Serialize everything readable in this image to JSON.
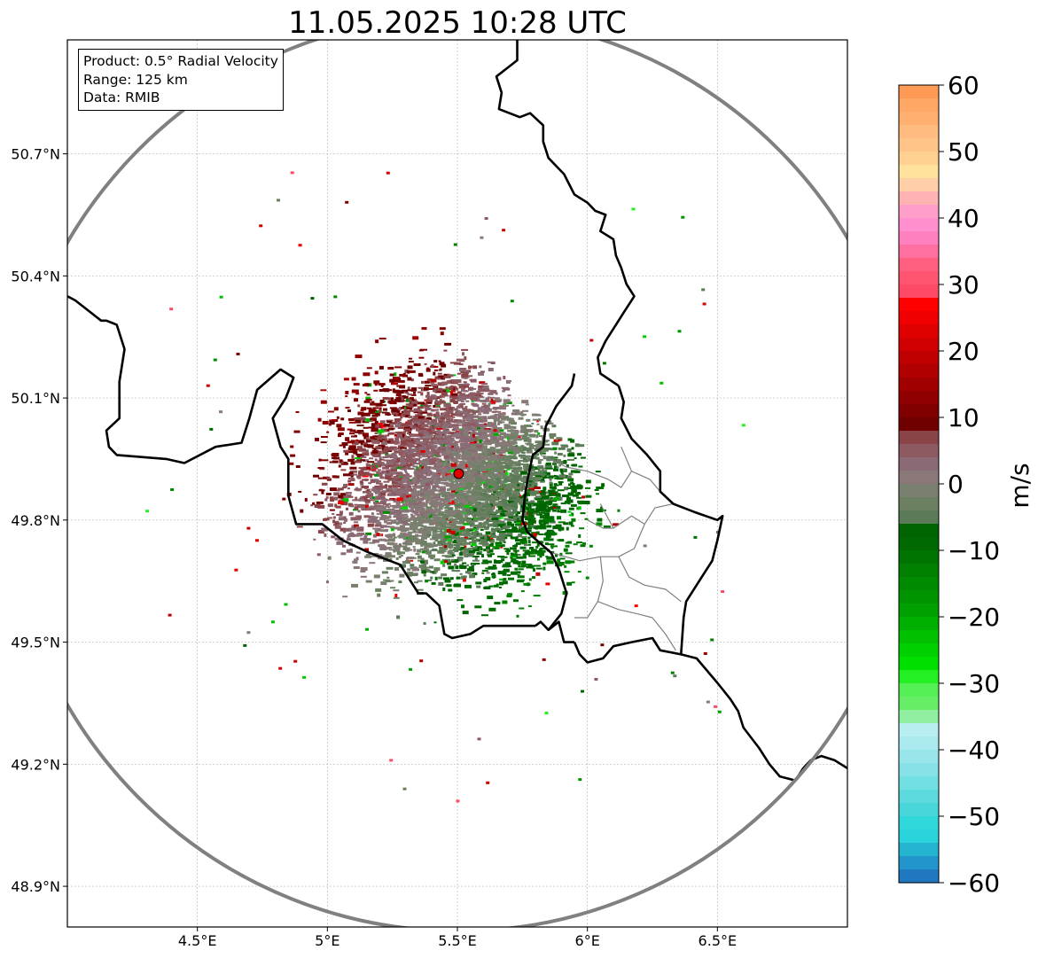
{
  "title": "11.05.2025 10:28 UTC",
  "info": {
    "product": "Product: 0.5° Radial Velocity",
    "range": "Range: 125 km",
    "data": "Data: RMIB"
  },
  "map": {
    "lon_range": [
      4.0,
      7.0
    ],
    "lat_range": [
      48.8,
      50.98
    ],
    "x_ticks": [
      {
        "value": 4.5,
        "label": "4.5°E"
      },
      {
        "value": 5.0,
        "label": "5°E"
      },
      {
        "value": 5.5,
        "label": "5.5°E"
      },
      {
        "value": 6.0,
        "label": "6°E"
      },
      {
        "value": 6.5,
        "label": "6.5°E"
      }
    ],
    "y_ticks": [
      {
        "value": 48.9,
        "label": "48.9°N"
      },
      {
        "value": 49.2,
        "label": "49.2°N"
      },
      {
        "value": 49.5,
        "label": "49.5°N"
      },
      {
        "value": 49.8,
        "label": "49.8°N"
      },
      {
        "value": 50.1,
        "label": "50.1°N"
      },
      {
        "value": 50.4,
        "label": "50.4°N"
      },
      {
        "value": 50.7,
        "label": "50.7°N"
      }
    ],
    "grid": true,
    "radar_site": {
      "lon": 5.505,
      "lat": 49.914
    },
    "range_ring_km": 125,
    "colors": {
      "range_ring": "#808080",
      "border": "#000000",
      "admin_border": "#808080",
      "site_marker": "#e00000"
    }
  },
  "colorbar": {
    "label": "m/s",
    "min": -60,
    "max": 60,
    "ticks": [
      {
        "value": 60,
        "label": "60"
      },
      {
        "value": 50,
        "label": "50"
      },
      {
        "value": 40,
        "label": "40"
      },
      {
        "value": 30,
        "label": "30"
      },
      {
        "value": 20,
        "label": "20"
      },
      {
        "value": 10,
        "label": "10"
      },
      {
        "value": 0,
        "label": "0"
      },
      {
        "value": -10,
        "label": "−10"
      },
      {
        "value": -20,
        "label": "−20"
      },
      {
        "value": -30,
        "label": "−30"
      },
      {
        "value": -40,
        "label": "−40"
      },
      {
        "value": -50,
        "label": "−50"
      },
      {
        "value": -60,
        "label": "−60"
      }
    ],
    "bands": [
      {
        "from": 58,
        "to": 60,
        "color": "#ff9a55"
      },
      {
        "from": 56,
        "to": 58,
        "color": "#ffa866"
      },
      {
        "from": 54,
        "to": 56,
        "color": "#ffb070"
      },
      {
        "from": 52,
        "to": 54,
        "color": "#ffbb80"
      },
      {
        "from": 50,
        "to": 52,
        "color": "#ffc488"
      },
      {
        "from": 48,
        "to": 50,
        "color": "#ffd090"
      },
      {
        "from": 46,
        "to": 48,
        "color": "#ffe29c"
      },
      {
        "from": 44,
        "to": 46,
        "color": "#ffd0a8"
      },
      {
        "from": 42,
        "to": 44,
        "color": "#ffb3b3"
      },
      {
        "from": 40,
        "to": 42,
        "color": "#ff9ec8"
      },
      {
        "from": 38,
        "to": 40,
        "color": "#ff8fcf"
      },
      {
        "from": 36,
        "to": 38,
        "color": "#ff80bf"
      },
      {
        "from": 34,
        "to": 36,
        "color": "#ff70a0"
      },
      {
        "from": 32,
        "to": 34,
        "color": "#ff6080"
      },
      {
        "from": 30,
        "to": 32,
        "color": "#ff5570"
      },
      {
        "from": 28,
        "to": 30,
        "color": "#ff4a66"
      },
      {
        "from": 26,
        "to": 28,
        "color": "#ff0000"
      },
      {
        "from": 24,
        "to": 26,
        "color": "#f00000"
      },
      {
        "from": 22,
        "to": 24,
        "color": "#e00000"
      },
      {
        "from": 20,
        "to": 22,
        "color": "#d00000"
      },
      {
        "from": 18,
        "to": 20,
        "color": "#c00000"
      },
      {
        "from": 16,
        "to": 18,
        "color": "#b00000"
      },
      {
        "from": 14,
        "to": 16,
        "color": "#a00000"
      },
      {
        "from": 12,
        "to": 14,
        "color": "#900000"
      },
      {
        "from": 10,
        "to": 12,
        "color": "#800000"
      },
      {
        "from": 8,
        "to": 10,
        "color": "#700000"
      },
      {
        "from": 6,
        "to": 8,
        "color": "#8a4448"
      },
      {
        "from": 4,
        "to": 6,
        "color": "#8e5a62"
      },
      {
        "from": 2,
        "to": 4,
        "color": "#8a6a74"
      },
      {
        "from": 0,
        "to": 2,
        "color": "#8a7878"
      },
      {
        "from": -2,
        "to": 0,
        "color": "#7a8070"
      },
      {
        "from": -4,
        "to": -2,
        "color": "#6a8060"
      },
      {
        "from": -6,
        "to": -4,
        "color": "#5a7a58"
      },
      {
        "from": -8,
        "to": -6,
        "color": "#006400"
      },
      {
        "from": -10,
        "to": -8,
        "color": "#006a00"
      },
      {
        "from": -12,
        "to": -10,
        "color": "#007400"
      },
      {
        "from": -14,
        "to": -12,
        "color": "#007f00"
      },
      {
        "from": -16,
        "to": -14,
        "color": "#008a00"
      },
      {
        "from": -18,
        "to": -16,
        "color": "#009500"
      },
      {
        "from": -20,
        "to": -18,
        "color": "#00a000"
      },
      {
        "from": -22,
        "to": -20,
        "color": "#00b000"
      },
      {
        "from": -24,
        "to": -22,
        "color": "#00c000"
      },
      {
        "from": -26,
        "to": -24,
        "color": "#00d000"
      },
      {
        "from": -28,
        "to": -26,
        "color": "#00e000"
      },
      {
        "from": -30,
        "to": -28,
        "color": "#22f022"
      },
      {
        "from": -32,
        "to": -30,
        "color": "#55f055"
      },
      {
        "from": -34,
        "to": -32,
        "color": "#66ee66"
      },
      {
        "from": -36,
        "to": -34,
        "color": "#90f0a0"
      },
      {
        "from": -38,
        "to": -36,
        "color": "#b8eef0"
      },
      {
        "from": -40,
        "to": -38,
        "color": "#aaeaee"
      },
      {
        "from": -42,
        "to": -40,
        "color": "#98e6ea"
      },
      {
        "from": -44,
        "to": -42,
        "color": "#86e2e6"
      },
      {
        "from": -46,
        "to": -44,
        "color": "#72dfe2"
      },
      {
        "from": -48,
        "to": -46,
        "color": "#5ddadd"
      },
      {
        "from": -50,
        "to": -48,
        "color": "#48d6da"
      },
      {
        "from": -52,
        "to": -50,
        "color": "#30d8dc"
      },
      {
        "from": -54,
        "to": -52,
        "color": "#2ad4dc"
      },
      {
        "from": -56,
        "to": -54,
        "color": "#24b4d0"
      },
      {
        "from": -58,
        "to": -56,
        "color": "#2296cc"
      },
      {
        "from": -60,
        "to": -58,
        "color": "#1f78c0"
      }
    ]
  },
  "boundaries": [
    {
      "name": "lux-north",
      "points": [
        [
          5.73,
          50.98
        ],
        [
          5.73,
          50.93
        ],
        [
          5.65,
          50.89
        ],
        [
          5.67,
          50.85
        ],
        [
          5.66,
          50.81
        ],
        [
          5.74,
          50.79
        ],
        [
          5.78,
          50.8
        ],
        [
          5.83,
          50.77
        ],
        [
          5.83,
          50.73
        ],
        [
          5.85,
          50.69
        ],
        [
          5.91,
          50.65
        ],
        [
          5.95,
          50.6
        ],
        [
          6.0,
          50.58
        ],
        [
          6.03,
          50.56
        ],
        [
          6.07,
          50.55
        ],
        [
          6.05,
          50.51
        ],
        [
          6.1,
          50.49
        ],
        [
          6.11,
          50.45
        ],
        [
          6.13,
          50.42
        ],
        [
          6.15,
          50.38
        ],
        [
          6.18,
          50.35
        ],
        [
          6.14,
          50.31
        ],
        [
          6.11,
          50.28
        ],
        [
          6.07,
          50.24
        ],
        [
          6.04,
          50.2
        ],
        [
          6.05,
          50.16
        ],
        [
          6.12,
          50.13
        ]
      ]
    },
    {
      "name": "lux-east",
      "points": [
        [
          6.12,
          50.13
        ],
        [
          6.14,
          50.09
        ],
        [
          6.13,
          50.05
        ],
        [
          6.17,
          50.0
        ],
        [
          6.23,
          49.96
        ],
        [
          6.28,
          49.92
        ],
        [
          6.28,
          49.87
        ],
        [
          6.33,
          49.84
        ],
        [
          6.41,
          49.82
        ],
        [
          6.5,
          49.8
        ],
        [
          6.52,
          49.81
        ],
        [
          6.5,
          49.75
        ],
        [
          6.48,
          49.7
        ],
        [
          6.44,
          49.66
        ],
        [
          6.38,
          49.6
        ],
        [
          6.37,
          49.56
        ],
        [
          6.36,
          49.47
        ],
        [
          6.28,
          49.48
        ],
        [
          6.25,
          49.51
        ],
        [
          6.17,
          49.5
        ],
        [
          6.1,
          49.49
        ],
        [
          6.06,
          49.46
        ],
        [
          6.0,
          49.45
        ],
        [
          5.97,
          49.47
        ],
        [
          5.95,
          49.5
        ]
      ]
    },
    {
      "name": "germany-france",
      "points": [
        [
          6.36,
          49.47
        ],
        [
          6.42,
          49.46
        ],
        [
          6.5,
          49.4
        ],
        [
          6.55,
          49.36
        ],
        [
          6.58,
          49.33
        ],
        [
          6.6,
          49.29
        ],
        [
          6.66,
          49.24
        ],
        [
          6.7,
          49.2
        ],
        [
          6.74,
          49.17
        ],
        [
          6.8,
          49.16
        ],
        [
          6.83,
          49.19
        ],
        [
          6.86,
          49.21
        ],
        [
          6.9,
          49.22
        ],
        [
          6.95,
          49.21
        ],
        [
          7.0,
          49.19
        ]
      ]
    },
    {
      "name": "belgium-luxembourg",
      "points": [
        [
          5.95,
          50.16
        ],
        [
          5.94,
          50.13
        ],
        [
          5.88,
          50.08
        ],
        [
          5.84,
          50.03
        ],
        [
          5.83,
          49.98
        ],
        [
          5.79,
          49.96
        ],
        [
          5.77,
          49.9
        ],
        [
          5.76,
          49.86
        ],
        [
          5.75,
          49.8
        ],
        [
          5.77,
          49.77
        ],
        [
          5.86,
          49.72
        ],
        [
          5.89,
          49.68
        ],
        [
          5.92,
          49.62
        ],
        [
          5.9,
          49.57
        ],
        [
          5.85,
          49.53
        ],
        [
          5.82,
          49.55
        ],
        [
          5.8,
          49.54
        ]
      ]
    },
    {
      "name": "belgium-france",
      "points": [
        [
          5.8,
          49.54
        ],
        [
          5.74,
          49.54
        ],
        [
          5.6,
          49.54
        ],
        [
          5.55,
          49.52
        ],
        [
          5.48,
          49.51
        ],
        [
          5.45,
          49.52
        ],
        [
          5.43,
          49.59
        ],
        [
          5.38,
          49.62
        ],
        [
          5.35,
          49.62
        ],
        [
          5.31,
          49.66
        ],
        [
          5.28,
          49.69
        ],
        [
          5.16,
          49.72
        ],
        [
          5.06,
          49.75
        ],
        [
          4.98,
          49.79
        ],
        [
          4.88,
          49.79
        ],
        [
          4.85,
          49.86
        ],
        [
          4.85,
          49.95
        ],
        [
          4.82,
          49.98
        ],
        [
          4.79,
          50.05
        ],
        [
          4.84,
          50.1
        ],
        [
          4.87,
          50.15
        ],
        [
          4.82,
          50.17
        ],
        [
          4.73,
          50.12
        ],
        [
          4.7,
          50.05
        ],
        [
          4.67,
          49.99
        ],
        [
          4.57,
          49.98
        ],
        [
          4.45,
          49.94
        ],
        [
          4.38,
          49.95
        ],
        [
          4.19,
          49.96
        ],
        [
          4.16,
          49.98
        ],
        [
          4.15,
          50.02
        ],
        [
          4.2,
          50.05
        ],
        [
          4.2,
          50.14
        ],
        [
          4.22,
          50.22
        ],
        [
          4.19,
          50.28
        ],
        [
          4.15,
          50.29
        ],
        [
          4.13,
          50.29
        ],
        [
          4.09,
          50.31
        ],
        [
          4.03,
          50.34
        ],
        [
          4.0,
          50.35
        ]
      ]
    },
    {
      "name": "france-lux-south",
      "points": [
        [
          5.95,
          49.5
        ],
        [
          5.91,
          49.5
        ],
        [
          5.89,
          49.55
        ],
        [
          5.85,
          49.53
        ]
      ]
    }
  ],
  "admin_boundaries": [
    {
      "name": "lux-canton-1",
      "points": [
        [
          6.13,
          49.98
        ],
        [
          6.17,
          49.92
        ],
        [
          6.24,
          49.9
        ],
        [
          6.28,
          49.87
        ]
      ]
    },
    {
      "name": "lux-canton-2",
      "points": [
        [
          5.82,
          49.96
        ],
        [
          5.92,
          49.93
        ],
        [
          6.0,
          49.92
        ],
        [
          6.08,
          49.9
        ],
        [
          6.13,
          49.88
        ],
        [
          6.17,
          49.92
        ]
      ]
    },
    {
      "name": "lux-canton-3",
      "points": [
        [
          5.86,
          49.72
        ],
        [
          5.97,
          49.7
        ],
        [
          6.05,
          49.71
        ],
        [
          6.12,
          49.71
        ],
        [
          6.18,
          49.73
        ],
        [
          6.22,
          49.79
        ],
        [
          6.26,
          49.83
        ],
        [
          6.33,
          49.84
        ]
      ]
    },
    {
      "name": "lux-canton-4",
      "points": [
        [
          6.05,
          49.71
        ],
        [
          6.06,
          49.65
        ],
        [
          6.04,
          49.6
        ],
        [
          6.0,
          49.56
        ],
        [
          5.95,
          49.56
        ]
      ]
    },
    {
      "name": "lux-canton-5",
      "points": [
        [
          6.12,
          49.71
        ],
        [
          6.16,
          49.66
        ],
        [
          6.22,
          49.64
        ],
        [
          6.3,
          49.63
        ],
        [
          6.36,
          49.6
        ]
      ]
    },
    {
      "name": "lux-canton-6",
      "points": [
        [
          6.04,
          49.6
        ],
        [
          6.12,
          49.58
        ],
        [
          6.19,
          49.57
        ],
        [
          6.25,
          49.56
        ],
        [
          6.3,
          49.52
        ],
        [
          6.34,
          49.48
        ]
      ]
    },
    {
      "name": "lux-canton-7",
      "points": [
        [
          6.0,
          49.8
        ],
        [
          6.06,
          49.78
        ],
        [
          6.1,
          49.78
        ],
        [
          6.17,
          49.81
        ],
        [
          6.22,
          49.79
        ]
      ]
    },
    {
      "name": "lux-canton-8",
      "points": [
        [
          6.05,
          49.84
        ],
        [
          6.1,
          49.78
        ]
      ]
    }
  ]
}
